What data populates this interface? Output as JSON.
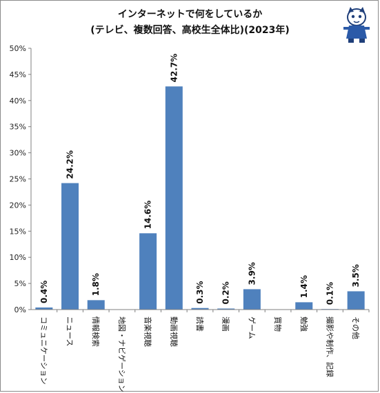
{
  "chart_data": {
    "type": "bar",
    "title": "インターネットで何をしているか",
    "subtitle": "(テレビ、複数回答、高校生全体比)(2023年)",
    "xlabel": "",
    "ylabel": "",
    "ylim": [
      0,
      50
    ],
    "yticks": [
      "0%",
      "5%",
      "10%",
      "15%",
      "20%",
      "25%",
      "30%",
      "35%",
      "40%",
      "45%",
      "50%"
    ],
    "grid": false,
    "legend": "none",
    "bar_color": "#4f81bd",
    "categories": [
      "コミュニケーション",
      "ニュース",
      "情報検索",
      "地図・ナビゲーション",
      "音楽視聴",
      "動画視聴",
      "読書",
      "漫画",
      "ゲーム",
      "買物",
      "勉強",
      "撮影や制作、記録",
      "その他"
    ],
    "values": [
      0.4,
      24.2,
      1.8,
      null,
      14.6,
      42.7,
      0.3,
      0.2,
      3.9,
      null,
      1.4,
      0.1,
      3.5
    ],
    "data_labels": [
      "0.4%",
      "24.2%",
      "1.8%",
      "",
      "14.6%",
      "42.7%",
      "0.3%",
      "0.2%",
      "3.9%",
      "",
      "1.4%",
      "0.1%",
      "3.5%"
    ]
  }
}
